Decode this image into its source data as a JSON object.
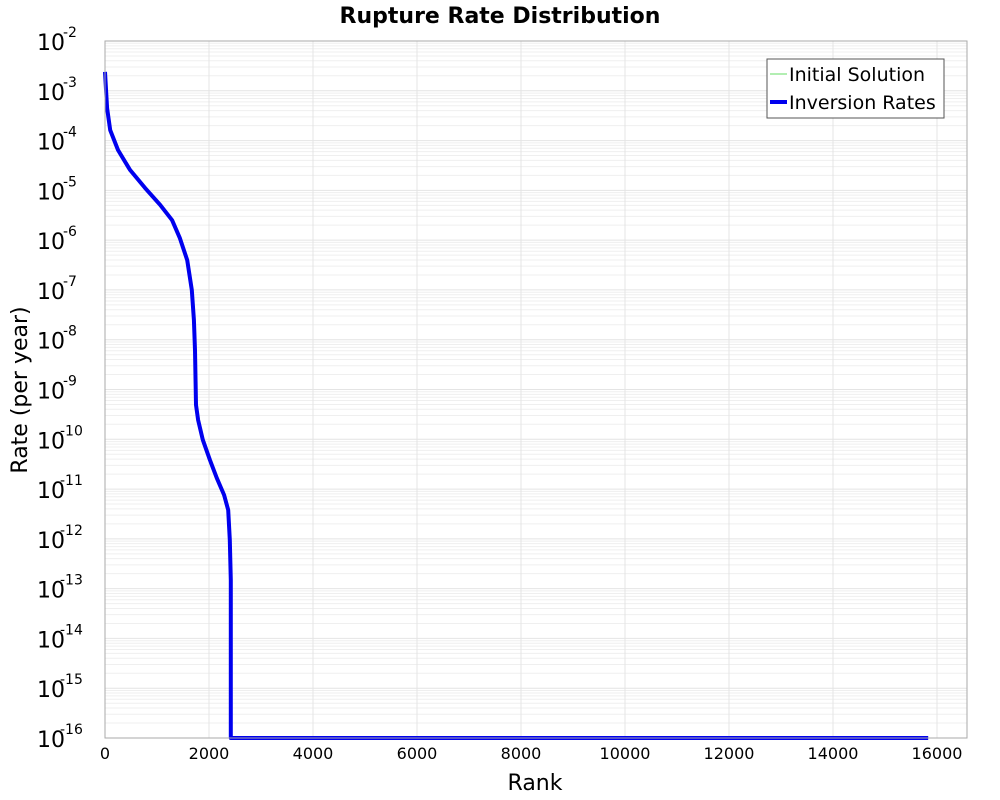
{
  "chart_data": {
    "type": "line",
    "title": "Rupture Rate Distribution",
    "xlabel": "Rank",
    "ylabel": "Rate (per year)",
    "xscale": "linear",
    "yscale": "log",
    "xlim": [
      0,
      16580
    ],
    "ylim": [
      1e-16,
      0.01
    ],
    "grid": true,
    "legend_position": "upper right",
    "x_ticks": [
      0,
      2000,
      4000,
      6000,
      8000,
      10000,
      12000,
      14000,
      16000
    ],
    "x_tick_labels": [
      "0",
      "2000",
      "4000",
      "6000",
      "8000",
      "10000",
      "12000",
      "14000",
      "16000"
    ],
    "y_ticks_exponents": [
      -2,
      -3,
      -4,
      -5,
      -6,
      -7,
      -8,
      -9,
      -10,
      -11,
      -12,
      -13,
      -14,
      -15,
      -16
    ],
    "y_tick_labels": [
      "10^-2",
      "10^-3",
      "10^-4",
      "10^-5",
      "10^-6",
      "10^-7",
      "10^-8",
      "10^-9",
      "10^-10",
      "10^-11",
      "10^-12",
      "10^-13",
      "10^-14",
      "10^-15",
      "10^-16"
    ],
    "series": [
      {
        "name": "Initial Solution",
        "color": "#66dd66",
        "line_width": 1,
        "x": [
          0,
          15830
        ],
        "log10_y": [
          -16,
          -16
        ]
      },
      {
        "name": "Inversion Rates",
        "color": "#0000ee",
        "line_width": 4,
        "x": [
          0,
          40,
          100,
          250,
          480,
          770,
          1060,
          1290,
          1440,
          1580,
          1670,
          1710,
          1730,
          1750,
          1790,
          1880,
          2020,
          2150,
          2290,
          2370,
          2400,
          2420,
          2420,
          15830
        ],
        "log10_y": [
          -2.62,
          -3.35,
          -3.79,
          -4.19,
          -4.59,
          -4.95,
          -5.29,
          -5.6,
          -5.96,
          -6.4,
          -7.0,
          -7.6,
          -8.21,
          -9.31,
          -9.61,
          -10.01,
          -10.42,
          -10.78,
          -11.12,
          -11.42,
          -12.02,
          -12.83,
          -16,
          -16
        ]
      }
    ]
  },
  "colors": {
    "background": "#ffffff",
    "plot_border": "#aaaaaa",
    "grid_major": "#e4e4e4",
    "grid_minor": "#efefef",
    "legend_border": "#555555"
  }
}
